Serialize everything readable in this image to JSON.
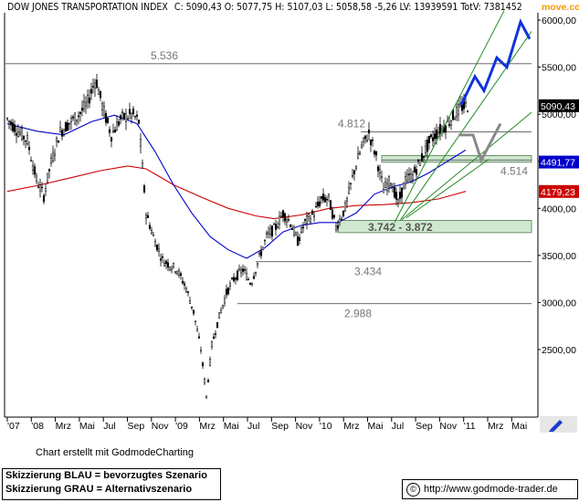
{
  "header": {
    "title": "DOW JONES TRANSPORTATION INDEX",
    "quote": "C: 5090,43 O: 5077,75 H: 5107,03 L: 5058,58 -5,26 LV: 13939591 TotV: 7381452",
    "brand": "move.co"
  },
  "chart_data": {
    "type": "candlestick",
    "title": "DOW JONES TRANSPORTATION INDEX",
    "last_close": 5090.43,
    "open": 5077.75,
    "high": 5107.03,
    "low": 5058.58,
    "change": -5.26,
    "ylim": [
      1900,
      6300
    ],
    "y_ticks": [
      {
        "value": 2500,
        "label": "2500,00"
      },
      {
        "value": 3000,
        "label": "3000,00"
      },
      {
        "value": 3500,
        "label": "3500,00"
      },
      {
        "value": 4000,
        "label": "4000,00"
      },
      {
        "value": 4500,
        "label": "4500,00"
      },
      {
        "value": 5000,
        "label": "5000,00"
      },
      {
        "value": 5500,
        "label": "5500,00"
      },
      {
        "value": 6000,
        "label": "6000,00"
      }
    ],
    "x_ticks": [
      "'07",
      "'08",
      "Mrz",
      "Mai",
      "Jul",
      "Sep",
      "Nov",
      "'09",
      "Mrz",
      "Mai",
      "Jul",
      "Sep",
      "Nov",
      "'10",
      "Mrz",
      "Mai",
      "Jul",
      "Sep",
      "Nov",
      "'11",
      "Mrz",
      "Mai"
    ],
    "price_labels": [
      {
        "value": 5090.43,
        "label": "5090,43",
        "color": "#ffffff",
        "bg": "#000000"
      },
      {
        "value": 4491.77,
        "label": "4491,77",
        "color": "#ffffff",
        "bg": "#0000cc"
      },
      {
        "value": 4179.23,
        "label": "4179,23",
        "color": "#ffffff",
        "bg": "#cc0000"
      }
    ],
    "levels": [
      {
        "value": 5536,
        "label": "5.536"
      },
      {
        "value": 4812,
        "label": "4.812"
      },
      {
        "value": 4514,
        "label": "4.514"
      },
      {
        "value": 3434,
        "label": "3.434"
      },
      {
        "value": 2988,
        "label": "2.988"
      }
    ],
    "zones": [
      {
        "from": 4490,
        "to": 4560,
        "label": ""
      },
      {
        "from": 3742,
        "to": 3872,
        "label": "3.742 - 3.872"
      }
    ],
    "series": [
      {
        "name": "MA200",
        "color": "#cc0000"
      },
      {
        "name": "MA50",
        "color": "#0000cc"
      }
    ],
    "scenarios": [
      {
        "name": "BLAU",
        "color": "#1133dd"
      },
      {
        "name": "GRAU",
        "color": "#888888"
      }
    ]
  },
  "footer": {
    "credit": "Chart erstellt mit GodmodeCharting",
    "legend_blue": "Skizzierung BLAU = bevorzugtes Szenario",
    "legend_gray": "Skizzierung GRAU = Alternativszenario",
    "url": "http://www.godmode-trader.de"
  },
  "colors": {
    "ma200": "#cc0000",
    "ma50": "#0000cc",
    "zone": "#cfe8cf",
    "trend": "#228b22",
    "candle": "#000000"
  }
}
